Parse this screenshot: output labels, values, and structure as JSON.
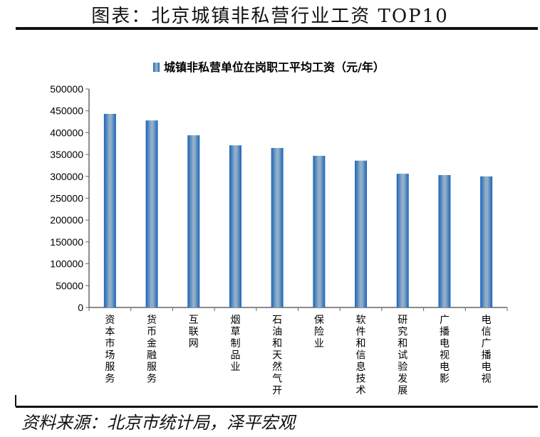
{
  "header": {
    "title": "图表：北京城镇非私营行业工资 TOP10"
  },
  "footer": {
    "source": "资料来源：北京市统计局，泽平宏观"
  },
  "chart_data": {
    "type": "bar",
    "title": "",
    "legend": [
      "城镇非私营单位在岗职工平均工资（元/年）"
    ],
    "legend_position": "top",
    "categories": [
      "资本市场服务",
      "货币金融服务",
      "互联网",
      "烟草制品业",
      "石油和天然气开",
      "保险业",
      "软件和信息技术",
      "研究和试验发展",
      "广播电视电影",
      "电信广播电视"
    ],
    "values": [
      443000,
      428000,
      394000,
      371000,
      365000,
      347000,
      336000,
      306000,
      303000,
      300000
    ],
    "yticks": [
      0,
      50000,
      100000,
      150000,
      200000,
      250000,
      300000,
      350000,
      400000,
      450000,
      500000
    ],
    "ylim": [
      0,
      500000
    ],
    "xlabel": "",
    "ylabel": "",
    "grid": false,
    "bar_color": "#1f6fc0"
  }
}
